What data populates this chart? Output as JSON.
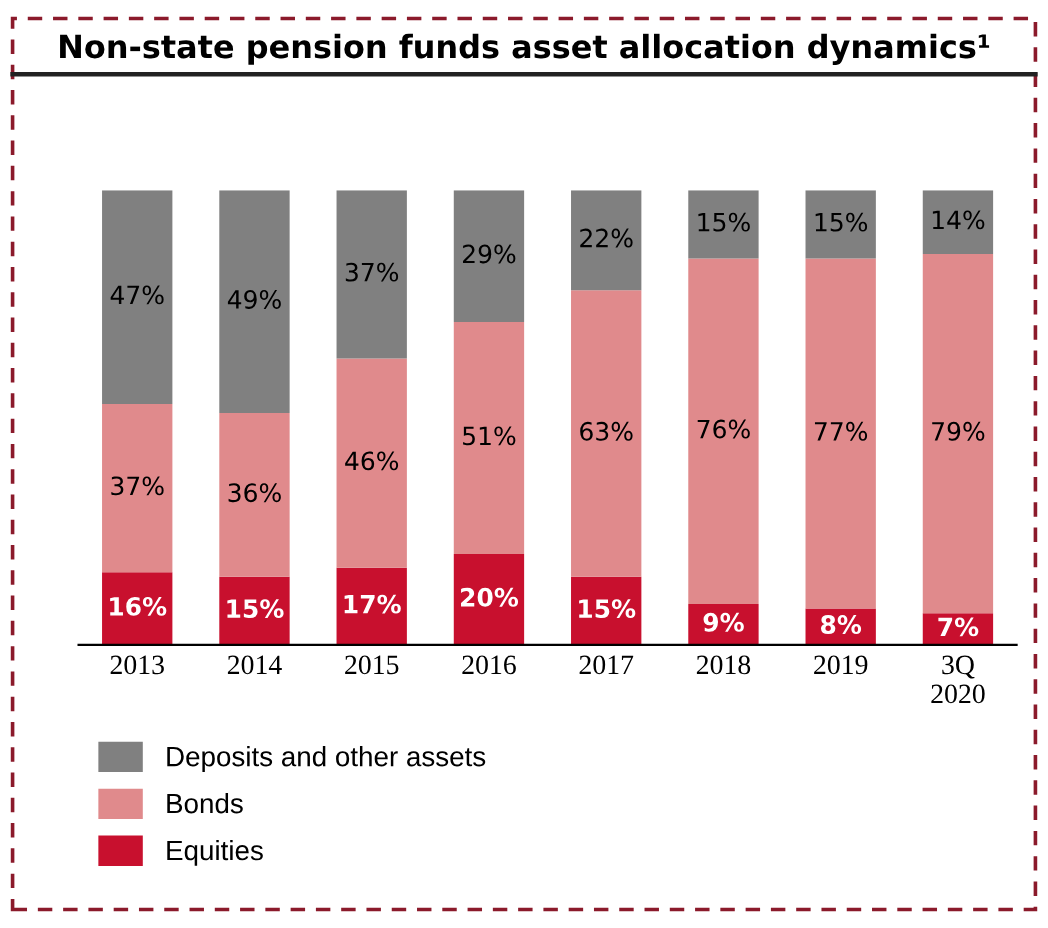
{
  "chart_data": {
    "type": "bar",
    "title": "Non-state pension funds asset allocation dynamics¹",
    "stacked": true,
    "legend": "bottom left",
    "grid": false,
    "categories": [
      "2013",
      "2014",
      "2015",
      "2016",
      "2017",
      "2018",
      "2019",
      "3Q\n2020"
    ],
    "series": [
      {
        "name": "Equities",
        "color": "#c8102e",
        "values": [
          16,
          15,
          17,
          20,
          15,
          9,
          8,
          7
        ],
        "value_labels": [
          "16%",
          "15%",
          "17%",
          "20%",
          "15%",
          "9%",
          "8%",
          "7%"
        ]
      },
      {
        "name": "Bonds",
        "color": "#e08a8c",
        "values": [
          37,
          36,
          46,
          51,
          63,
          76,
          77,
          79
        ],
        "value_labels": [
          "37%",
          "36%",
          "46%",
          "51%",
          "63%",
          "76%",
          "77%",
          "79%"
        ]
      },
      {
        "name": "Deposits and other assets",
        "color": "#808080",
        "values": [
          47,
          49,
          37,
          29,
          22,
          15,
          15,
          14
        ],
        "value_labels": [
          "47%",
          "49%",
          "37%",
          "29%",
          "22%",
          "15%",
          "15%",
          "14%"
        ]
      }
    ]
  }
}
